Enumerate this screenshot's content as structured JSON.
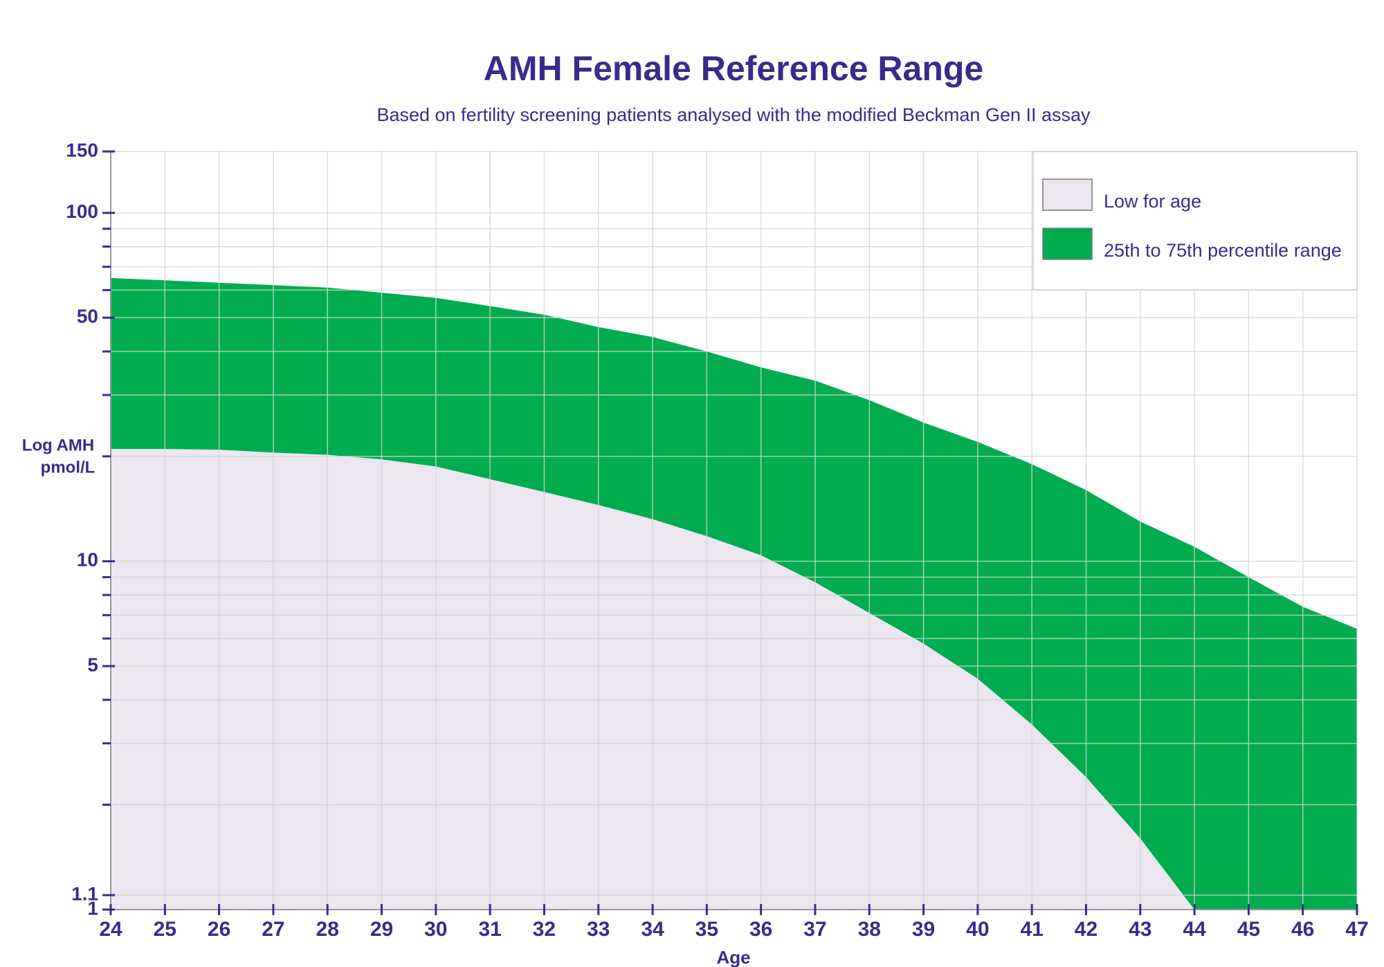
{
  "chart_data": {
    "type": "area",
    "title": "AMH Female Reference Range",
    "subtitle": "Based on fertility screening patients analysed with the modified Beckman Gen II assay",
    "xlabel": "Age",
    "ylabel": [
      "Log AMH",
      "pmol/L"
    ],
    "x": [
      24,
      25,
      26,
      27,
      28,
      29,
      30,
      31,
      32,
      33,
      34,
      35,
      36,
      37,
      38,
      39,
      40,
      41,
      42,
      43,
      44,
      45,
      46,
      47
    ],
    "series": [
      {
        "name": "Low for age",
        "color": "#ebe6f0",
        "values": [
          21,
          21,
          20.9,
          20.5,
          20.2,
          19.6,
          18.7,
          17.2,
          15.8,
          14.5,
          13.2,
          11.8,
          10.4,
          8.7,
          7.1,
          5.8,
          4.6,
          3.4,
          2.4,
          1.6,
          1,
          1,
          1,
          1
        ]
      },
      {
        "name": "25th to 75th percentile range",
        "color": "#00ac4f",
        "values": [
          65,
          64,
          63,
          62,
          61,
          59,
          57,
          54,
          51,
          47,
          44,
          40,
          36,
          33,
          29,
          25,
          22,
          19,
          16,
          13,
          11,
          9,
          7.4,
          6.4
        ]
      }
    ],
    "xlim": [
      24,
      47
    ],
    "xticks": [
      24,
      25,
      26,
      27,
      28,
      29,
      30,
      31,
      32,
      33,
      34,
      35,
      36,
      37,
      38,
      39,
      40,
      41,
      42,
      43,
      44,
      45,
      46,
      47
    ],
    "ylim": [
      1,
      150
    ],
    "yticks": [
      1,
      1.1,
      5,
      10,
      50,
      100,
      150
    ],
    "minor_yticks": [
      2,
      3,
      4,
      6,
      7,
      8,
      9,
      20,
      30,
      40,
      60,
      70,
      80,
      90
    ],
    "log_y": true,
    "grid": true,
    "legend": "upper right"
  }
}
